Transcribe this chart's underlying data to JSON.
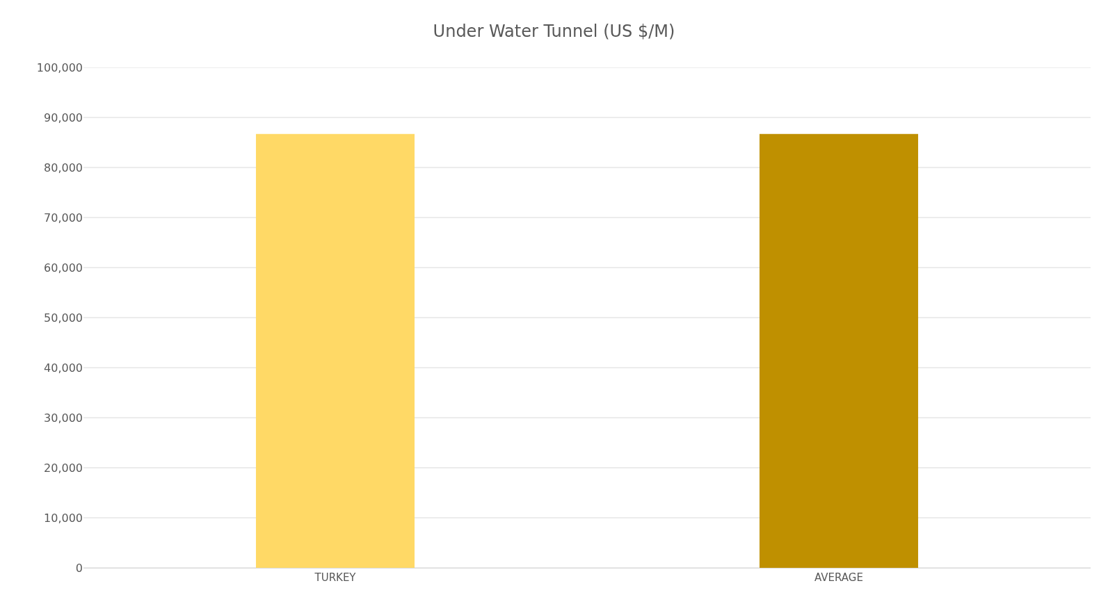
{
  "chart_data": {
    "type": "bar",
    "title": "Under Water Tunnel (US $/M)",
    "categories": [
      "TURKEY",
      "AVERAGE"
    ],
    "values": [
      86700,
      86700
    ],
    "colors": [
      "#ffd966",
      "#bf9000"
    ],
    "ylim": [
      0,
      100000
    ],
    "yticks": [
      {
        "value": 0,
        "label": "0"
      },
      {
        "value": 10000,
        "label": "10,000"
      },
      {
        "value": 20000,
        "label": "20,000"
      },
      {
        "value": 30000,
        "label": "30,000"
      },
      {
        "value": 40000,
        "label": "40,000"
      },
      {
        "value": 50000,
        "label": "50,000"
      },
      {
        "value": 60000,
        "label": "60,000"
      },
      {
        "value": 70000,
        "label": "70,000"
      },
      {
        "value": 80000,
        "label": "80,000"
      },
      {
        "value": 90000,
        "label": "90,000"
      },
      {
        "value": 100000,
        "label": "100,000"
      }
    ],
    "grid": "y"
  }
}
